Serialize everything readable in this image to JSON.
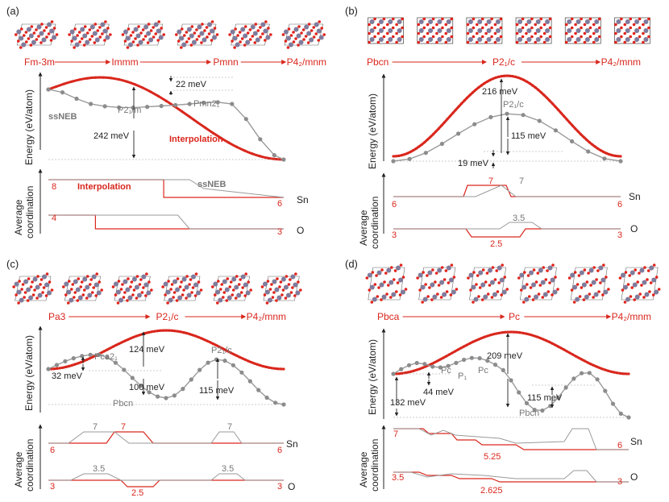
{
  "colors": {
    "red": "#d9271d",
    "gray": "#9a9a9a",
    "dot": "#8c8c8c",
    "dark": "#222222",
    "o_atom": "#e0231b",
    "sn_atom": "#7f7c9c"
  },
  "chart_data": [
    {
      "panel": "(a)",
      "type": "line",
      "phases": [
        "Fm-3m",
        "Immm",
        "Pmnn",
        "P4₂/mnm"
      ],
      "ylabel": "Energy (eV/atom)",
      "series": [
        {
          "name": "Interpolation",
          "kind": "smooth",
          "peak_meV": 264,
          "peak_x": 0.22
        },
        {
          "name": "ssNEB",
          "kind": "dots",
          "x": [
            0,
            0.06,
            0.12,
            0.18,
            0.24,
            0.3,
            0.36,
            0.42,
            0.48,
            0.54,
            0.6,
            0.66,
            0.72,
            0.78,
            0.84,
            0.9,
            0.96,
            1.0
          ],
          "y_meV": [
            242,
            232,
            210,
            192,
            184,
            180,
            179,
            182,
            185,
            188,
            192,
            196,
            198,
            192,
            140,
            70,
            15,
            0
          ]
        }
      ],
      "point_labels": [
        "P2₁/m",
        "Pmn2₁"
      ],
      "energy_labels": [
        "22 meV",
        "242 meV"
      ],
      "series_labels": [
        "ssNEB",
        "Interpolation"
      ],
      "coordination": {
        "ylabel": "Average coordination",
        "Sn": {
          "label": "Sn",
          "start": "8",
          "end": "6",
          "interp": [
            [
              0,
              8
            ],
            [
              0.49,
              8
            ],
            [
              0.49,
              6
            ],
            [
              1,
              6
            ]
          ],
          "ssneb": [
            [
              0,
              8
            ],
            [
              0.6,
              8
            ],
            [
              0.66,
              7
            ],
            [
              1,
              6
            ]
          ]
        },
        "O": {
          "label": "O",
          "start": "4",
          "end": "3",
          "interp": [
            [
              0,
              4
            ],
            [
              0.2,
              4
            ],
            [
              0.2,
              3
            ],
            [
              1,
              3
            ]
          ],
          "ssneb": [
            [
              0,
              4
            ],
            [
              0.55,
              4
            ],
            [
              0.6,
              3
            ],
            [
              1,
              3
            ]
          ]
        },
        "legend": [
          "Interpolation",
          "ssNEB"
        ]
      }
    },
    {
      "panel": "(b)",
      "type": "line",
      "phases": [
        "Pbcn",
        "P2₁/c",
        "P4₂/mnm"
      ],
      "ylabel": "Energy (eV/atom)",
      "series": [
        {
          "name": "Interpolation",
          "kind": "bell",
          "peak_meV": 216,
          "peak_x": 0.5
        },
        {
          "name": "ssNEB",
          "kind": "dots",
          "peak_meV": 115,
          "offset_meV": 19
        }
      ],
      "point_labels": [
        "P2₁/c"
      ],
      "energy_labels": [
        "216 meV",
        "115 meV",
        "19 meV"
      ],
      "coordination": {
        "ylabel": "Average coordination",
        "Sn": {
          "label": "Sn",
          "start": "6",
          "end": "6",
          "mid": [
            "7",
            "7"
          ]
        },
        "O": {
          "label": "O",
          "start": "3",
          "end": "3",
          "mid": [
            "3.5",
            "2.5"
          ]
        }
      }
    },
    {
      "panel": "(c)",
      "type": "line",
      "phases": [
        "Pa3",
        "P2₁/c",
        "P4₂/mnm"
      ],
      "ylabel": "Energy (eV/atom)",
      "series": [
        {
          "name": "Interpolation",
          "kind": "bell",
          "peak_meV": 224,
          "peak_x": 0.5
        },
        {
          "name": "ssNEB",
          "kind": "dots",
          "points_meV": [
            100,
            132,
            0,
            115
          ]
        }
      ],
      "point_labels": [
        "Pca2₁",
        "Pbcn",
        "P2₁/c"
      ],
      "energy_labels": [
        "124 meV",
        "32 meV",
        "100 meV",
        "115 meV"
      ],
      "coordination": {
        "ylabel": "Average coordination",
        "Sn": {
          "label": "Sn",
          "start": "6",
          "end": "6",
          "mid": [
            "7",
            "7",
            "7"
          ]
        },
        "O": {
          "label": "O",
          "start": "3",
          "end": "3",
          "mid": [
            "3.5",
            "2.5",
            "3.5"
          ]
        }
      }
    },
    {
      "panel": "(d)",
      "type": "line",
      "phases": [
        "Pbca",
        "Pc",
        "P4₂/mnm"
      ],
      "ylabel": "Energy (eV/atom)",
      "series": [
        {
          "name": "Interpolation",
          "kind": "bell",
          "peak_meV": 209,
          "peak_x": 0.5
        },
        {
          "name": "ssNEB",
          "kind": "dots"
        }
      ],
      "point_labels": [
        "Pc",
        "P₁",
        "Pc",
        "Pbcn"
      ],
      "energy_labels": [
        "209 meV",
        "44 meV",
        "132 meV",
        "115 meV"
      ],
      "coordination": {
        "ylabel": "Average coordination",
        "Sn": {
          "label": "Sn",
          "start": "7",
          "end": "6",
          "mid": [
            "5.25"
          ]
        },
        "O": {
          "label": "O",
          "start": "3.5",
          "end": "3",
          "mid": [
            "2.625"
          ]
        }
      }
    }
  ]
}
